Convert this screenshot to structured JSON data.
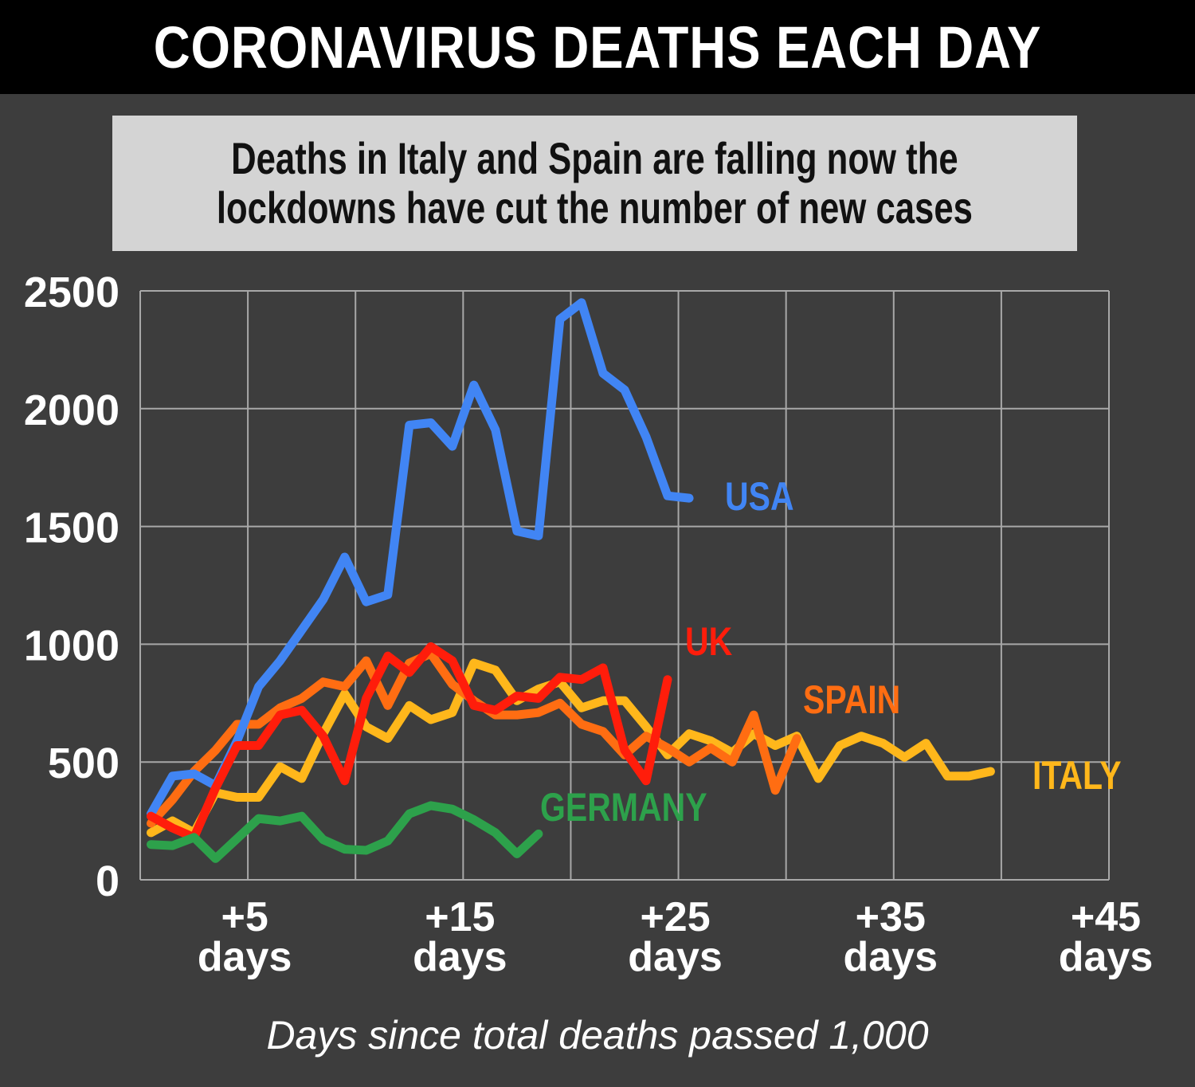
{
  "header": {
    "title": "CORONAVIRUS DEATHS EACH DAY"
  },
  "subtitle": {
    "line1": "Deaths in Italy and Spain are falling now the",
    "line2": "lockdowns have cut the number of new cases"
  },
  "colors": {
    "background": "#3d3d3d",
    "header_bg": "#000000",
    "subtitle_bg": "#d4d4d4",
    "grid": "#a8a8a8",
    "text": "#ffffff"
  },
  "chart_data": {
    "type": "line",
    "xlabel": "Days since total deaths passed 1,000",
    "ylabel": "",
    "xlim": [
      0,
      45
    ],
    "ylim": [
      0,
      2500
    ],
    "y_ticks": [
      0,
      500,
      1000,
      1500,
      2000,
      2500
    ],
    "x_ticks": [
      {
        "value": 5,
        "line1": "+5",
        "line2": "days"
      },
      {
        "value": 15,
        "line1": "+15",
        "line2": "days"
      },
      {
        "value": 25,
        "line1": "+25",
        "line2": "days"
      },
      {
        "value": 35,
        "line1": "+35",
        "line2": "days"
      },
      {
        "value": 45,
        "line1": "+45",
        "line2": "days"
      }
    ],
    "grid": true,
    "series": [
      {
        "name": "ITALY",
        "color": "#ffb71b",
        "points": [
          [
            0.5,
            200
          ],
          [
            1.5,
            250
          ],
          [
            2.5,
            200
          ],
          [
            3.5,
            370
          ],
          [
            4.5,
            350
          ],
          [
            5.5,
            350
          ],
          [
            6.5,
            480
          ],
          [
            7.5,
            430
          ],
          [
            8.5,
            620
          ],
          [
            9.5,
            790
          ],
          [
            10.5,
            650
          ],
          [
            11.5,
            600
          ],
          [
            12.5,
            740
          ],
          [
            13.5,
            680
          ],
          [
            14.5,
            710
          ],
          [
            15.5,
            920
          ],
          [
            16.5,
            890
          ],
          [
            17.5,
            760
          ],
          [
            18.5,
            810
          ],
          [
            19.5,
            840
          ],
          [
            20.5,
            730
          ],
          [
            21.5,
            760
          ],
          [
            22.5,
            760
          ],
          [
            23.5,
            650
          ],
          [
            24.5,
            530
          ],
          [
            25.5,
            620
          ],
          [
            26.5,
            590
          ],
          [
            27.5,
            540
          ],
          [
            28.5,
            620
          ],
          [
            29.5,
            570
          ],
          [
            30.5,
            610
          ],
          [
            31.5,
            430
          ],
          [
            32.5,
            570
          ],
          [
            33.5,
            610
          ],
          [
            34.5,
            580
          ],
          [
            35.5,
            520
          ],
          [
            36.5,
            580
          ],
          [
            37.5,
            440
          ],
          [
            38.5,
            440
          ],
          [
            39.5,
            460
          ]
        ]
      },
      {
        "name": "SPAIN",
        "color": "#ff6d12",
        "points": [
          [
            0.5,
            240
          ],
          [
            1.5,
            340
          ],
          [
            2.5,
            460
          ],
          [
            3.5,
            550
          ],
          [
            4.5,
            660
          ],
          [
            5.5,
            660
          ],
          [
            6.5,
            730
          ],
          [
            7.5,
            770
          ],
          [
            8.5,
            840
          ],
          [
            9.5,
            820
          ],
          [
            10.5,
            930
          ],
          [
            11.5,
            740
          ],
          [
            12.5,
            920
          ],
          [
            13.5,
            960
          ],
          [
            14.5,
            830
          ],
          [
            15.5,
            760
          ],
          [
            16.5,
            700
          ],
          [
            17.5,
            700
          ],
          [
            18.5,
            710
          ],
          [
            19.5,
            750
          ],
          [
            20.5,
            660
          ],
          [
            21.5,
            630
          ],
          [
            22.5,
            530
          ],
          [
            23.5,
            610
          ],
          [
            24.5,
            560
          ],
          [
            25.5,
            500
          ],
          [
            26.5,
            560
          ],
          [
            27.5,
            500
          ],
          [
            28.5,
            700
          ],
          [
            29.5,
            380
          ],
          [
            30.5,
            600
          ]
        ]
      },
      {
        "name": "USA",
        "color": "#4185f4",
        "points": [
          [
            0.5,
            280
          ],
          [
            1.5,
            440
          ],
          [
            2.5,
            450
          ],
          [
            3.5,
            400
          ],
          [
            4.5,
            590
          ],
          [
            5.5,
            820
          ],
          [
            6.5,
            930
          ],
          [
            7.5,
            1060
          ],
          [
            8.5,
            1190
          ],
          [
            9.5,
            1370
          ],
          [
            10.5,
            1180
          ],
          [
            11.5,
            1210
          ],
          [
            12.5,
            1930
          ],
          [
            13.5,
            1940
          ],
          [
            14.5,
            1840
          ],
          [
            15.5,
            2100
          ],
          [
            16.5,
            1910
          ],
          [
            17.5,
            1480
          ],
          [
            18.5,
            1460
          ],
          [
            19.5,
            2380
          ],
          [
            20.5,
            2450
          ],
          [
            21.5,
            2150
          ],
          [
            22.5,
            2080
          ],
          [
            23.5,
            1880
          ],
          [
            24.5,
            1630
          ],
          [
            25.5,
            1620
          ]
        ]
      },
      {
        "name": "UK",
        "color": "#ff1d0b",
        "points": [
          [
            0.5,
            270
          ],
          [
            1.5,
            220
          ],
          [
            2.5,
            180
          ],
          [
            3.5,
            390
          ],
          [
            4.5,
            570
          ],
          [
            5.5,
            570
          ],
          [
            6.5,
            700
          ],
          [
            7.5,
            720
          ],
          [
            8.5,
            610
          ],
          [
            9.5,
            420
          ],
          [
            10.5,
            770
          ],
          [
            11.5,
            950
          ],
          [
            12.5,
            880
          ],
          [
            13.5,
            990
          ],
          [
            14.5,
            930
          ],
          [
            15.5,
            740
          ],
          [
            16.5,
            720
          ],
          [
            17.5,
            780
          ],
          [
            18.5,
            770
          ],
          [
            19.5,
            860
          ],
          [
            20.5,
            850
          ],
          [
            21.5,
            900
          ],
          [
            22.5,
            550
          ],
          [
            23.5,
            420
          ],
          [
            24.5,
            850
          ]
        ]
      },
      {
        "name": "GERMANY",
        "color": "#2da14b",
        "points": [
          [
            0.5,
            150
          ],
          [
            1.5,
            145
          ],
          [
            2.5,
            180
          ],
          [
            3.5,
            90
          ],
          [
            4.5,
            175
          ],
          [
            5.5,
            260
          ],
          [
            6.5,
            250
          ],
          [
            7.5,
            270
          ],
          [
            8.5,
            170
          ],
          [
            9.5,
            130
          ],
          [
            10.5,
            125
          ],
          [
            11.5,
            165
          ],
          [
            12.5,
            280
          ],
          [
            13.5,
            315
          ],
          [
            14.5,
            300
          ],
          [
            15.5,
            255
          ],
          [
            16.5,
            200
          ],
          [
            17.5,
            110
          ],
          [
            18.5,
            195
          ]
        ]
      }
    ]
  }
}
